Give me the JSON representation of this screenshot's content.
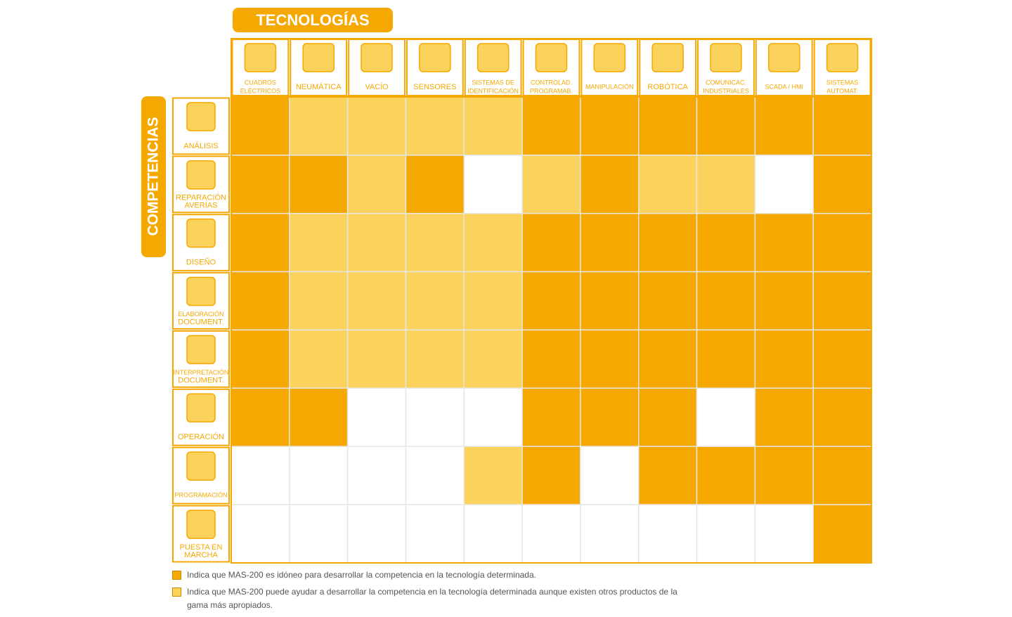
{
  "header": {
    "title": "TECNOLOGÍAS",
    "side_title": "COMPETENCIAS"
  },
  "table": {
    "columns": [
      [
        "CUADROS",
        "ELÉCTRICOS"
      ],
      [
        "NEUMÁTICA"
      ],
      [
        "VACÍO"
      ],
      [
        "SENSORES"
      ],
      [
        "SISTEMAS DE",
        "IDENTIFICACIÓN"
      ],
      [
        "CONTROLAD.",
        "PROGRAMAB."
      ],
      [
        "MANIPULACIÓN"
      ],
      [
        "ROBÓTICA"
      ],
      [
        "COMUNICAC.",
        "INDUSTRIALES"
      ],
      [
        "SCADA / HMI"
      ],
      [
        "SISTEMAS",
        "AUTOMAT."
      ]
    ],
    "rows": [
      [
        "ANÁLISIS"
      ],
      [
        "REPARACIÓN",
        "AVERÍAS"
      ],
      [
        "DISEÑO"
      ],
      [
        "ELABORACIÓN",
        "DOCUMENT."
      ],
      [
        "INTERPRETACIÓN",
        "DOCUMENT."
      ],
      [
        "OPERACIÓN"
      ],
      [
        "PROGRAMACIÓN"
      ],
      [
        "PUESTA EN",
        "MARCHA"
      ]
    ],
    "cells": [
      [
        0,
        1,
        1,
        1,
        1,
        0,
        0,
        0,
        0,
        0,
        0
      ],
      [
        0,
        0,
        1,
        0,
        null,
        1,
        0,
        1,
        1,
        null,
        0
      ],
      [
        0,
        1,
        1,
        1,
        1,
        0,
        0,
        0,
        0,
        0,
        0
      ],
      [
        0,
        1,
        1,
        1,
        1,
        0,
        0,
        0,
        0,
        0,
        0
      ],
      [
        0,
        1,
        1,
        1,
        1,
        0,
        0,
        0,
        0,
        0,
        0
      ],
      [
        0,
        0,
        null,
        null,
        null,
        0,
        0,
        0,
        null,
        0,
        0
      ],
      [
        null,
        null,
        null,
        null,
        1,
        0,
        null,
        0,
        0,
        0,
        0
      ],
      [
        null,
        null,
        null,
        null,
        null,
        null,
        null,
        null,
        null,
        null,
        0
      ]
    ]
  },
  "legend": [
    {
      "color": "#f5a800",
      "text": "Indica que MAS-200 es idóneo para desarrollar la competencia en la tecnología determinada."
    },
    {
      "color": "#fbd35c",
      "text": "Indica que MAS-200 puede ayudar a desarrollar la competencia en la tecnología determinada aunque existen otros productos de la gama más apropiados."
    }
  ]
}
